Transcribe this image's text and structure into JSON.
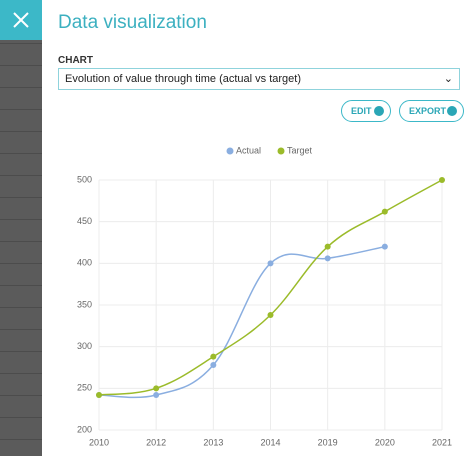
{
  "header": {
    "title": "Data visualization"
  },
  "form": {
    "label": "CHART",
    "selected": "Evolution of value through time (actual vs target)"
  },
  "buttons": [
    "EDIT",
    "EXPORT"
  ],
  "chart_data": {
    "type": "line",
    "categories": [
      "2010",
      "2012",
      "2013",
      "2014",
      "2019",
      "2020",
      "2021"
    ],
    "series": [
      {
        "name": "Actual",
        "color": "#8aaee0",
        "values": [
          242,
          242,
          278,
          400,
          406,
          420,
          null
        ]
      },
      {
        "name": "Target",
        "color": "#9bbb2a",
        "values": [
          242,
          250,
          288,
          338,
          420,
          462,
          500
        ]
      }
    ],
    "ylim": [
      200,
      500
    ],
    "yticks": [
      200,
      250,
      300,
      350,
      400,
      450,
      500
    ],
    "grid": true,
    "legend": "top"
  }
}
